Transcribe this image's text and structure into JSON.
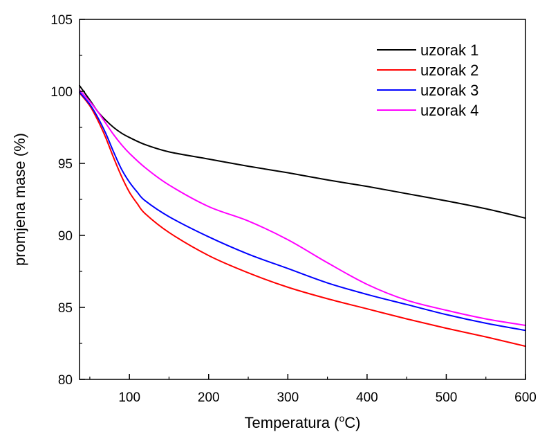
{
  "chart_data": {
    "type": "line",
    "title": "",
    "xlabel": "Temperatura (",
    "xlabel_sup": "o",
    "xlabel_unit": "C)",
    "ylabel": "promjena mase (%)",
    "xlim": [
      37,
      600
    ],
    "ylim": [
      80,
      105
    ],
    "xticks": [
      100,
      200,
      300,
      400,
      500,
      600
    ],
    "yticks": [
      80,
      85,
      90,
      95,
      100,
      105
    ],
    "grid": false,
    "legend": "top-right",
    "series": [
      {
        "name": "uzorak 1",
        "color": "#000000",
        "x": [
          37,
          50,
          60,
          70,
          80,
          90,
          100,
          120,
          150,
          200,
          250,
          300,
          350,
          400,
          450,
          500,
          550,
          600
        ],
        "y": [
          100.4,
          99.4,
          98.6,
          98.0,
          97.5,
          97.1,
          96.8,
          96.3,
          95.8,
          95.3,
          94.8,
          94.35,
          93.85,
          93.4,
          92.9,
          92.4,
          91.85,
          91.2
        ]
      },
      {
        "name": "uzorak 2",
        "color": "#ff0000",
        "x": [
          37,
          50,
          60,
          70,
          80,
          90,
          100,
          110,
          120,
          150,
          200,
          250,
          300,
          350,
          400,
          450,
          500,
          550,
          600
        ],
        "y": [
          99.9,
          99.0,
          98.0,
          96.8,
          95.4,
          94.1,
          93.0,
          92.2,
          91.5,
          90.2,
          88.6,
          87.4,
          86.4,
          85.6,
          84.9,
          84.2,
          83.55,
          82.95,
          82.3
        ]
      },
      {
        "name": "uzorak 3",
        "color": "#0000ff",
        "x": [
          37,
          50,
          60,
          70,
          80,
          90,
          100,
          110,
          120,
          150,
          200,
          250,
          300,
          350,
          400,
          450,
          500,
          550,
          600
        ],
        "y": [
          99.95,
          99.1,
          98.2,
          97.1,
          95.8,
          94.6,
          93.7,
          93.0,
          92.4,
          91.3,
          89.9,
          88.7,
          87.7,
          86.7,
          85.9,
          85.2,
          84.5,
          83.9,
          83.4
        ]
      },
      {
        "name": "uzorak 4",
        "color": "#ff00ff",
        "x": [
          37,
          50,
          60,
          70,
          80,
          90,
          100,
          120,
          150,
          200,
          250,
          300,
          350,
          400,
          450,
          500,
          550,
          600
        ],
        "y": [
          100.1,
          99.3,
          98.6,
          97.8,
          97.0,
          96.3,
          95.7,
          94.7,
          93.5,
          92.0,
          91.0,
          89.7,
          88.1,
          86.6,
          85.5,
          84.8,
          84.2,
          83.75
        ]
      }
    ]
  }
}
